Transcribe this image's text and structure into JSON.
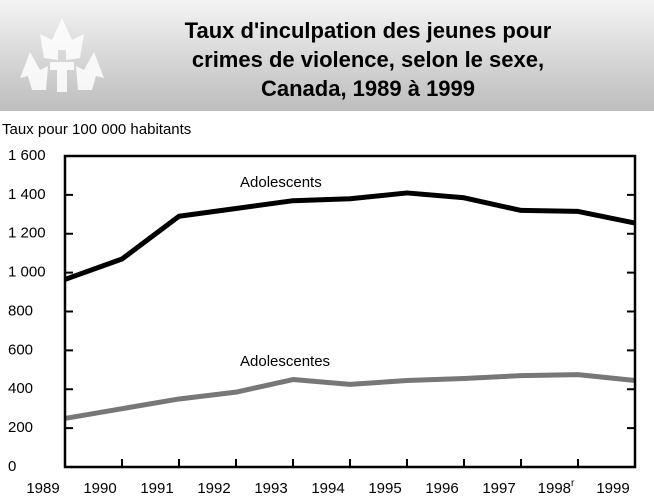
{
  "chart_data": {
    "type": "line",
    "title_lines": [
      "Taux d'inculpation des jeunes pour",
      "crimes de violence, selon le sexe,",
      "Canada, 1989 à 1999"
    ],
    "y_axis_label": "Taux pour 100 000 habitants",
    "categories": [
      "1989",
      "1990",
      "1991",
      "1992",
      "1993",
      "1994",
      "1995",
      "1996",
      "1997",
      "1998",
      "1999"
    ],
    "revised_marker": {
      "index": 9,
      "label": "r"
    },
    "series": [
      {
        "name": "Adolescents",
        "color": "#000000",
        "values": [
          965,
          1070,
          1290,
          1330,
          1370,
          1380,
          1410,
          1385,
          1320,
          1315,
          1255
        ]
      },
      {
        "name": "Adolescentes",
        "color": "#777777",
        "values": [
          250,
          300,
          350,
          385,
          450,
          425,
          445,
          455,
          470,
          475,
          445
        ]
      }
    ],
    "ylim": [
      0,
      1600
    ],
    "yticks": [
      0,
      200,
      400,
      600,
      800,
      {
        "value": 1000,
        "label": "1 000"
      },
      {
        "value": 1200,
        "label": "1 200"
      },
      {
        "value": 1400,
        "label": "1 400"
      },
      {
        "value": 1600,
        "label": "1 600"
      }
    ]
  }
}
